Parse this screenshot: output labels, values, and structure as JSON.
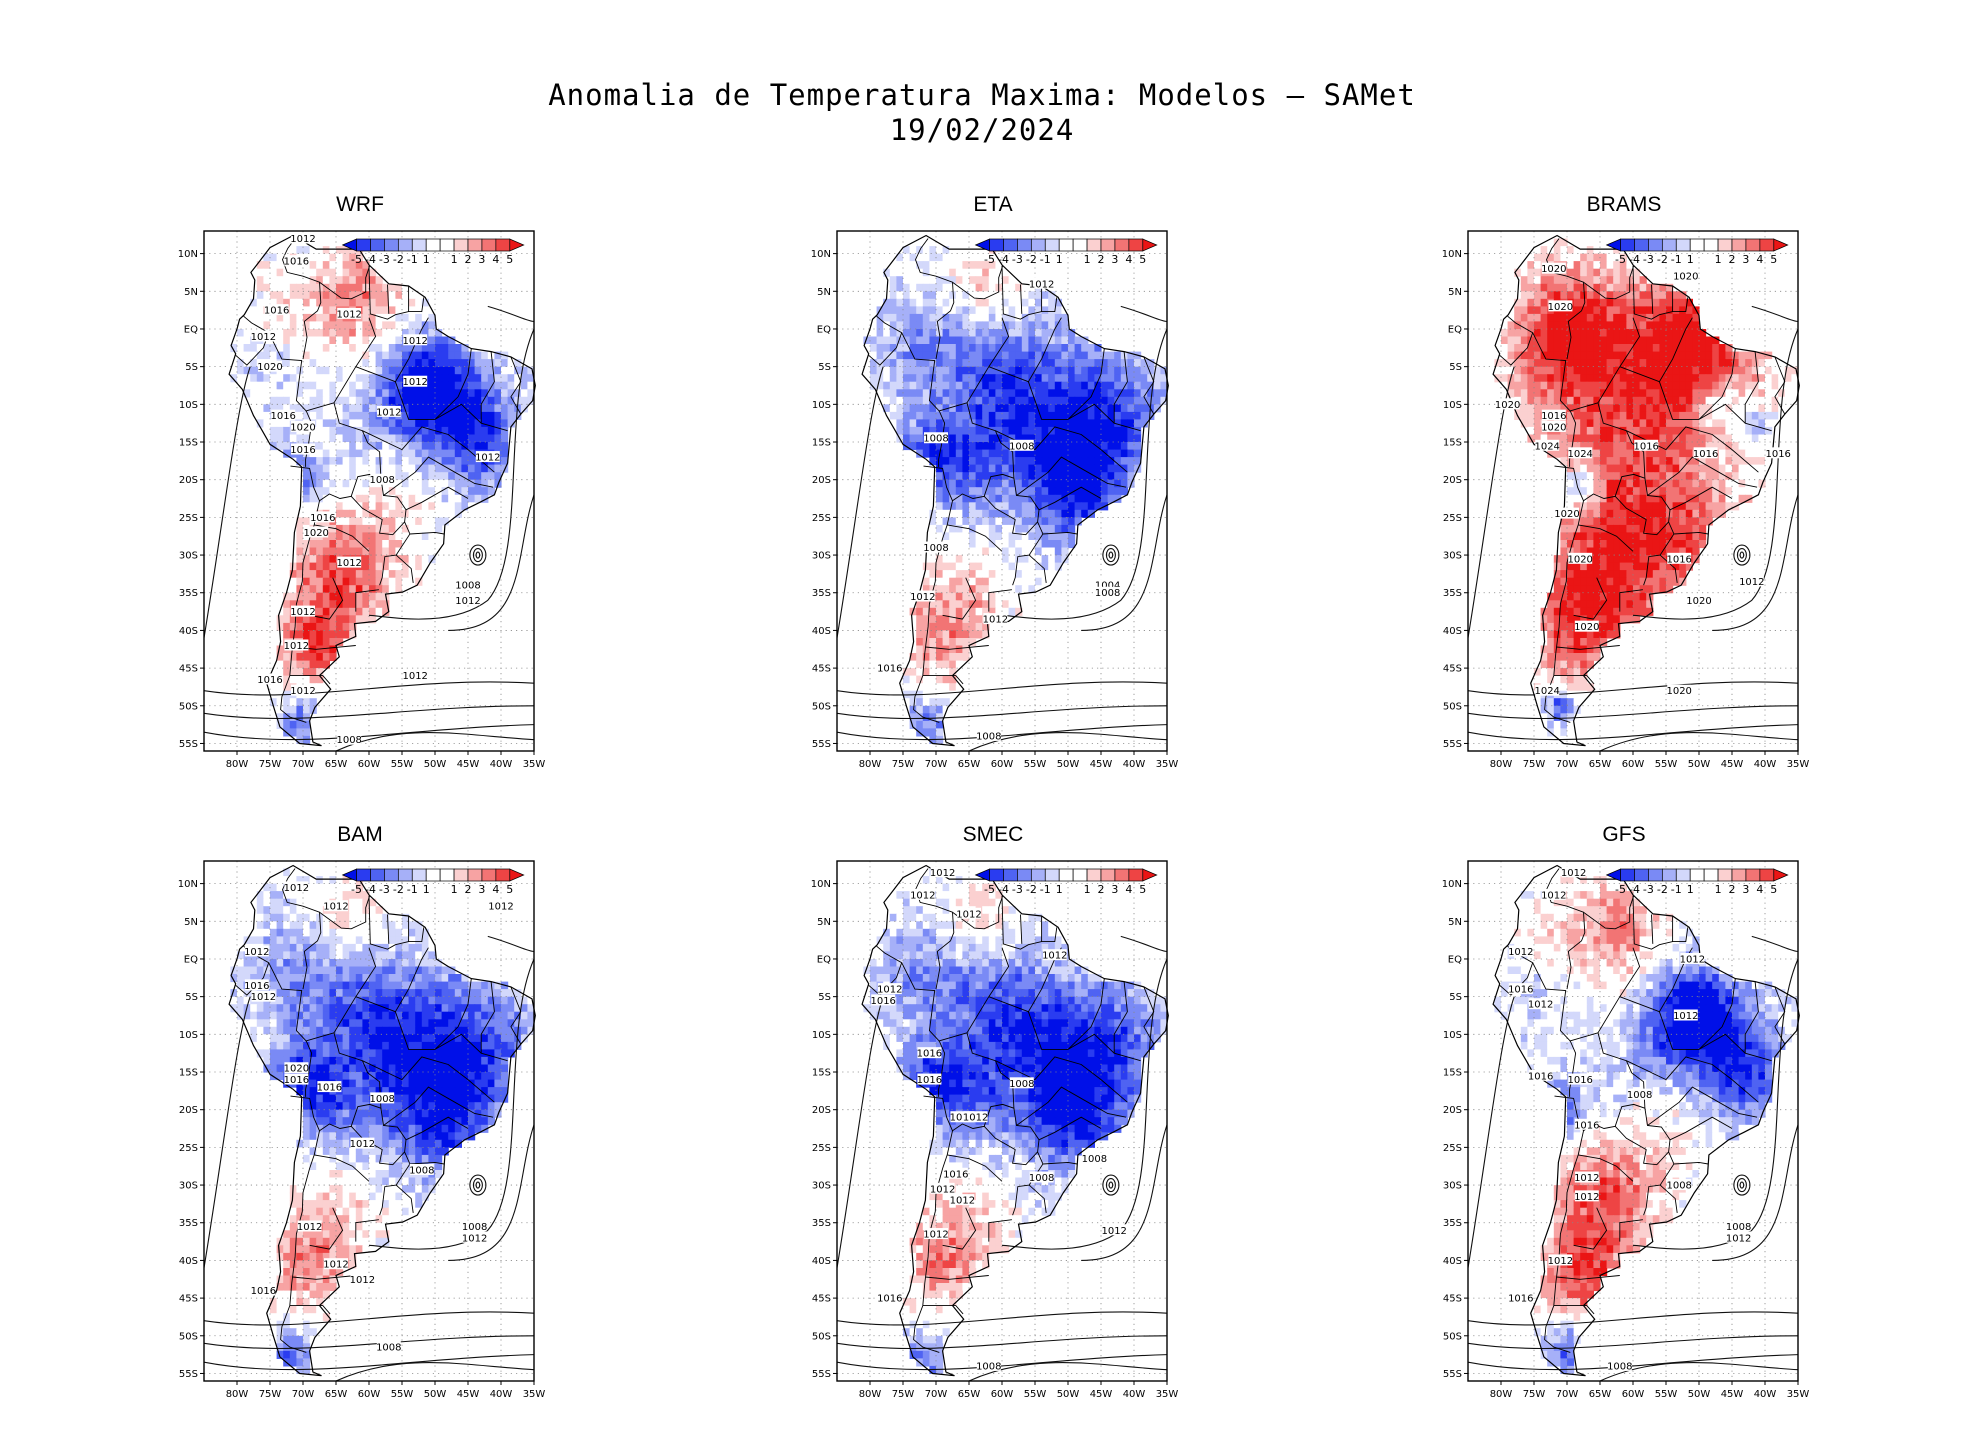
{
  "title": {
    "line1": "Anomalia de Temperatura Maxima: Modelos — SAMet",
    "line2": "19/02/2024"
  },
  "colorbar": {
    "labels": [
      "-5",
      "-4",
      "-3",
      "-2",
      "-1",
      "1",
      "1",
      "2",
      "3",
      "4",
      "5"
    ],
    "colors": [
      "#0010e8",
      "#2a3cf0",
      "#4f63f2",
      "#7a8af5",
      "#a6b0f8",
      "#d3d8fb",
      "#ffffff",
      "#ffffff",
      "#fbd0d0",
      "#f7a3a3",
      "#f27474",
      "#ee4444",
      "#ea1515"
    ]
  },
  "lat_labels": [
    "10N",
    "5N",
    "EQ",
    "5S",
    "10S",
    "15S",
    "20S",
    "25S",
    "30S",
    "35S",
    "40S",
    "45S",
    "50S",
    "55S"
  ],
  "lon_labels": [
    "80W",
    "75W",
    "70W",
    "65W",
    "60W",
    "55W",
    "50W",
    "45W",
    "40W",
    "35W"
  ],
  "panels": [
    {
      "name": "WRF",
      "style": "mixed",
      "isobars": [
        {
          "text": "1012",
          "lon": -70,
          "lat": 12
        },
        {
          "text": "1016",
          "lon": -71,
          "lat": 9
        },
        {
          "text": "1012",
          "lon": -63,
          "lat": 2
        },
        {
          "text": "1016",
          "lon": -74,
          "lat": 2.5
        },
        {
          "text": "1012",
          "lon": -76,
          "lat": -1
        },
        {
          "text": "1012",
          "lon": -53,
          "lat": -1.5
        },
        {
          "text": "1020",
          "lon": -75,
          "lat": -5
        },
        {
          "text": "1012",
          "lon": -53,
          "lat": -7
        },
        {
          "text": "1012",
          "lon": -57,
          "lat": -11
        },
        {
          "text": "1016",
          "lon": -73,
          "lat": -11.5
        },
        {
          "text": "1020",
          "lon": -70,
          "lat": -13
        },
        {
          "text": "1016",
          "lon": -70,
          "lat": -16
        },
        {
          "text": "1012",
          "lon": -42,
          "lat": -17
        },
        {
          "text": "1008",
          "lon": -58,
          "lat": -20
        },
        {
          "text": "1016",
          "lon": -67,
          "lat": -25
        },
        {
          "text": "1020",
          "lon": -68,
          "lat": -27
        },
        {
          "text": "1012",
          "lon": -63,
          "lat": -31
        },
        {
          "text": "1008",
          "lon": -45,
          "lat": -34
        },
        {
          "text": "1012",
          "lon": -45,
          "lat": -36
        },
        {
          "text": "1012",
          "lon": -70,
          "lat": -37.5
        },
        {
          "text": "1012",
          "lon": -71,
          "lat": -42
        },
        {
          "text": "1016",
          "lon": -75,
          "lat": -46.5
        },
        {
          "text": "1012",
          "lon": -70,
          "lat": -48
        },
        {
          "text": "1012",
          "lon": -53,
          "lat": -46
        },
        {
          "text": "1008",
          "lon": -63,
          "lat": -54.5
        }
      ]
    },
    {
      "name": "ETA",
      "style": "blue",
      "isobars": [
        {
          "text": "1012",
          "lon": -54,
          "lat": 6
        },
        {
          "text": "1008",
          "lon": -70,
          "lat": -14.5
        },
        {
          "text": "1008",
          "lon": -57,
          "lat": -15.5
        },
        {
          "text": "1008",
          "lon": -70,
          "lat": -29
        },
        {
          "text": "1004",
          "lon": -44,
          "lat": -34
        },
        {
          "text": "1008",
          "lon": -44,
          "lat": -35
        },
        {
          "text": "1012",
          "lon": -72,
          "lat": -35.5
        },
        {
          "text": "1012",
          "lon": -61,
          "lat": -38.5
        },
        {
          "text": "1016",
          "lon": -77,
          "lat": -45
        },
        {
          "text": "1008",
          "lon": -62,
          "lat": -54
        }
      ]
    },
    {
      "name": "BRAMS",
      "style": "red",
      "isobars": [
        {
          "text": "1020",
          "lon": -72,
          "lat": 8
        },
        {
          "text": "1020",
          "lon": -52,
          "lat": 7
        },
        {
          "text": "1020",
          "lon": -71,
          "lat": 3
        },
        {
          "text": "1020",
          "lon": -79,
          "lat": -10
        },
        {
          "text": "1016",
          "lon": -72,
          "lat": -11.5
        },
        {
          "text": "1020",
          "lon": -72,
          "lat": -13
        },
        {
          "text": "1024",
          "lon": -73,
          "lat": -15.5
        },
        {
          "text": "1024",
          "lon": -68,
          "lat": -16.5
        },
        {
          "text": "1016",
          "lon": -58,
          "lat": -15.5
        },
        {
          "text": "1016",
          "lon": -49,
          "lat": -16.5
        },
        {
          "text": "1016",
          "lon": -38,
          "lat": -16.5
        },
        {
          "text": "1020",
          "lon": -70,
          "lat": -24.5
        },
        {
          "text": "1020",
          "lon": -68,
          "lat": -30.5
        },
        {
          "text": "1016",
          "lon": -53,
          "lat": -30.5
        },
        {
          "text": "1012",
          "lon": -42,
          "lat": -33.5
        },
        {
          "text": "1020",
          "lon": -50,
          "lat": -36
        },
        {
          "text": "1020",
          "lon": -67,
          "lat": -39.5
        },
        {
          "text": "1024",
          "lon": -73,
          "lat": -48
        },
        {
          "text": "1020",
          "lon": -53,
          "lat": -48
        }
      ]
    },
    {
      "name": "BAM",
      "style": "blue",
      "isobars": [
        {
          "text": "1012",
          "lon": -71,
          "lat": 9.5
        },
        {
          "text": "1012",
          "lon": -65,
          "lat": 7
        },
        {
          "text": "1012",
          "lon": -40,
          "lat": 7
        },
        {
          "text": "1012",
          "lon": -77,
          "lat": 1
        },
        {
          "text": "1016",
          "lon": -77,
          "lat": -3.5
        },
        {
          "text": "1012",
          "lon": -76,
          "lat": -5
        },
        {
          "text": "1020",
          "lon": -71,
          "lat": -14.5
        },
        {
          "text": "1016",
          "lon": -71,
          "lat": -16
        },
        {
          "text": "1016",
          "lon": -66,
          "lat": -17
        },
        {
          "text": "1008",
          "lon": -58,
          "lat": -18.5
        },
        {
          "text": "1012",
          "lon": -61,
          "lat": -24.5
        },
        {
          "text": "1008",
          "lon": -52,
          "lat": -28
        },
        {
          "text": "1012",
          "lon": -69,
          "lat": -35.5
        },
        {
          "text": "1008",
          "lon": -44,
          "lat": -35.5
        },
        {
          "text": "1012",
          "lon": -44,
          "lat": -37
        },
        {
          "text": "1012",
          "lon": -65,
          "lat": -40.5
        },
        {
          "text": "1012",
          "lon": -61,
          "lat": -42.5
        },
        {
          "text": "1016",
          "lon": -76,
          "lat": -44
        },
        {
          "text": "1008",
          "lon": -57,
          "lat": -51.5
        }
      ]
    },
    {
      "name": "SMEC",
      "style": "blue",
      "isobars": [
        {
          "text": "1012",
          "lon": -69,
          "lat": 11.5
        },
        {
          "text": "1012",
          "lon": -72,
          "lat": 8.5
        },
        {
          "text": "1012",
          "lon": -65,
          "lat": 6
        },
        {
          "text": "1012",
          "lon": -52,
          "lat": 0.5
        },
        {
          "text": "1012",
          "lon": -77,
          "lat": -4
        },
        {
          "text": "1016",
          "lon": -78,
          "lat": -5.5
        },
        {
          "text": "1016",
          "lon": -71,
          "lat": -12.5
        },
        {
          "text": "1016",
          "lon": -71,
          "lat": -16
        },
        {
          "text": "1008",
          "lon": -57,
          "lat": -16.5
        },
        {
          "text": "1016",
          "lon": -66,
          "lat": -21
        },
        {
          "text": "1012",
          "lon": -64,
          "lat": -21
        },
        {
          "text": "1008",
          "lon": -46,
          "lat": -26.5
        },
        {
          "text": "1016",
          "lon": -67,
          "lat": -28.5
        },
        {
          "text": "1008",
          "lon": -54,
          "lat": -29
        },
        {
          "text": "1012",
          "lon": -69,
          "lat": -30.5
        },
        {
          "text": "1012",
          "lon": -66,
          "lat": -32
        },
        {
          "text": "1012",
          "lon": -43,
          "lat": -36
        },
        {
          "text": "1012",
          "lon": -70,
          "lat": -36.5
        },
        {
          "text": "1016",
          "lon": -77,
          "lat": -45
        },
        {
          "text": "1008",
          "lon": -62,
          "lat": -54
        }
      ]
    },
    {
      "name": "GFS",
      "style": "mixed",
      "isobars": [
        {
          "text": "1012",
          "lon": -69,
          "lat": 11.5
        },
        {
          "text": "1012",
          "lon": -72,
          "lat": 8.5
        },
        {
          "text": "1012",
          "lon": -77,
          "lat": 1
        },
        {
          "text": "1012",
          "lon": -51,
          "lat": 0
        },
        {
          "text": "1016",
          "lon": -77,
          "lat": -4
        },
        {
          "text": "1012",
          "lon": -74,
          "lat": -6
        },
        {
          "text": "1012",
          "lon": -52,
          "lat": -7.5
        },
        {
          "text": "1016",
          "lon": -74,
          "lat": -15.5
        },
        {
          "text": "1016",
          "lon": -68,
          "lat": -16
        },
        {
          "text": "1008",
          "lon": -59,
          "lat": -18
        },
        {
          "text": "1016",
          "lon": -67,
          "lat": -22
        },
        {
          "text": "1012",
          "lon": -67,
          "lat": -29
        },
        {
          "text": "1008",
          "lon": -53,
          "lat": -30
        },
        {
          "text": "1012",
          "lon": -67,
          "lat": -31.5
        },
        {
          "text": "1008",
          "lon": -44,
          "lat": -35.5
        },
        {
          "text": "1012",
          "lon": -44,
          "lat": -37
        },
        {
          "text": "1012",
          "lon": -71,
          "lat": -40
        },
        {
          "text": "1016",
          "lon": -77,
          "lat": -45
        },
        {
          "text": "1008",
          "lon": -62,
          "lat": -54
        }
      ]
    }
  ]
}
